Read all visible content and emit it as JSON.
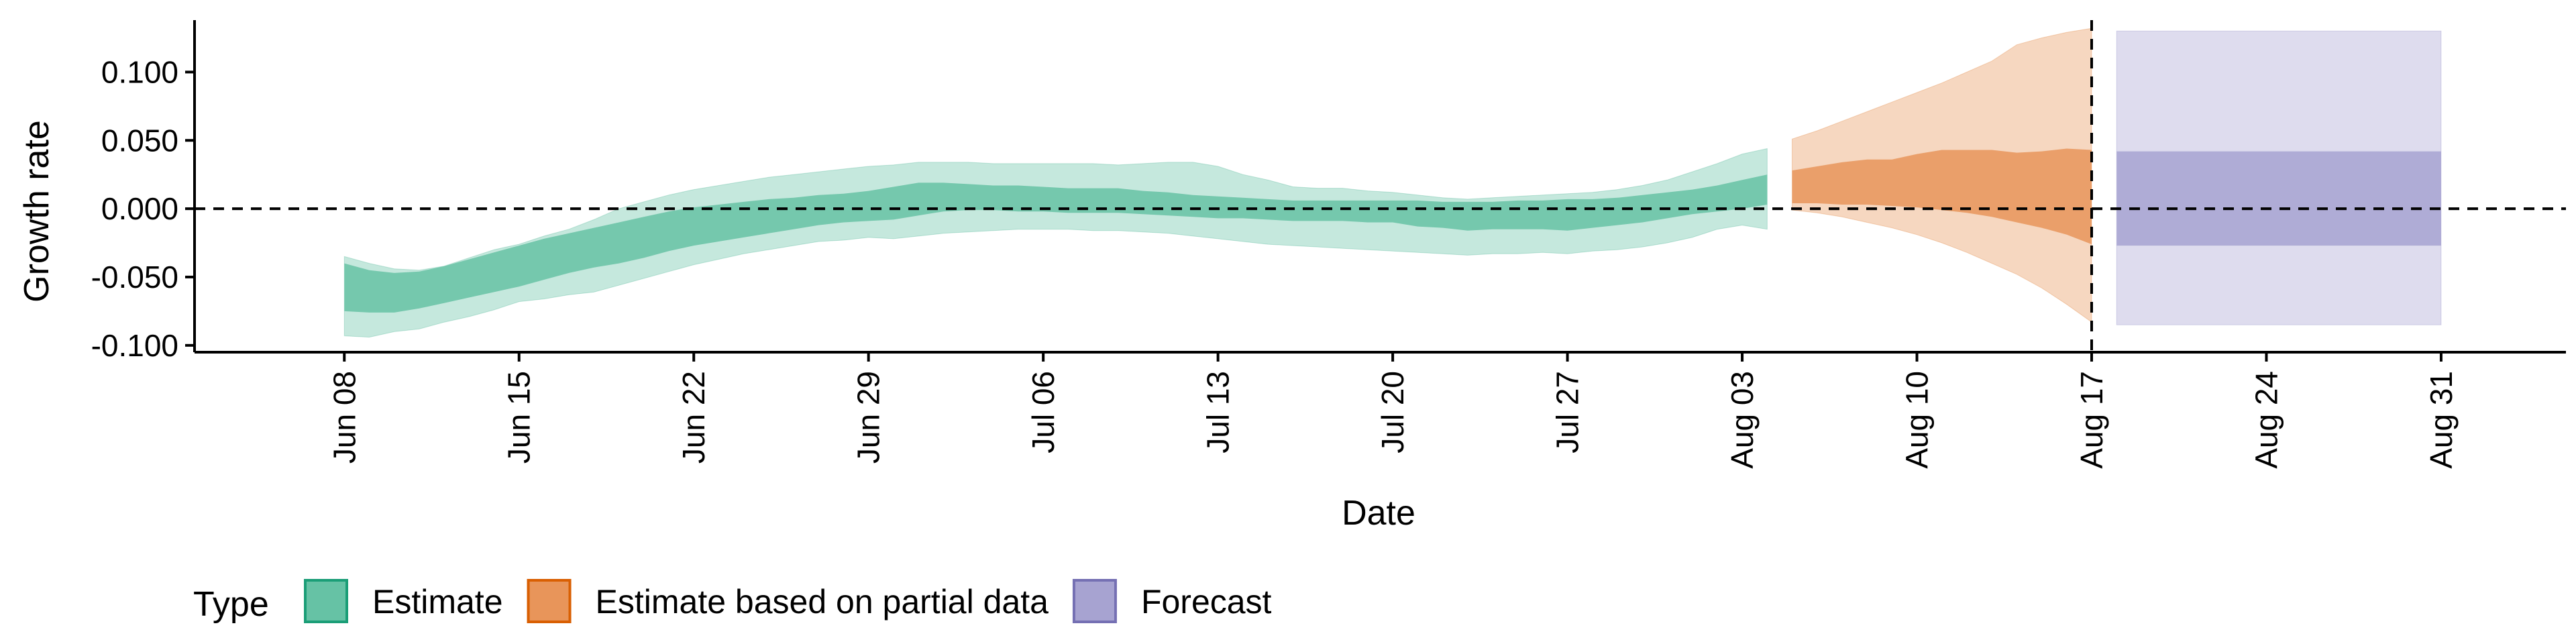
{
  "chart_data": {
    "type": "area",
    "title": "",
    "xlabel": "Date",
    "ylabel": "Growth rate",
    "ylim": [
      -0.105,
      0.138
    ],
    "xlim": [
      "2020-06-02",
      "2020-09-05"
    ],
    "y_ticks": [
      -0.1,
      -0.05,
      0.0,
      0.05,
      0.1
    ],
    "y_tick_labels": [
      "-0.100",
      "-0.050",
      "0.000",
      "0.050",
      "0.100"
    ],
    "x_ticks": [
      "2020-06-08",
      "2020-06-15",
      "2020-06-22",
      "2020-06-29",
      "2020-07-06",
      "2020-07-13",
      "2020-07-20",
      "2020-07-27",
      "2020-08-03",
      "2020-08-10",
      "2020-08-17",
      "2020-08-24",
      "2020-08-31"
    ],
    "x_tick_labels": [
      "Jun 08",
      "Jun 15",
      "Jun 22",
      "Jun 29",
      "Jul 06",
      "Jul 13",
      "Jul 20",
      "Jul 27",
      "Aug 03",
      "Aug 10",
      "Aug 17",
      "Aug 24",
      "Aug 31"
    ],
    "reference_lines": {
      "horizontal_y": 0.0,
      "vertical_date": "2020-08-17",
      "style": "dashed"
    },
    "grid": false,
    "legend": {
      "title": "Type",
      "position": "bottom-left",
      "items": [
        {
          "label": "Estimate",
          "fill": "#66c2a5",
          "border": "#1b9e77"
        },
        {
          "label": "Estimate based on partial data",
          "fill": "#e8955a",
          "border": "#d95f02"
        },
        {
          "label": "Forecast",
          "fill": "#a7a3d1",
          "border": "#7570b3"
        }
      ]
    },
    "series": [
      {
        "name": "Estimate",
        "color": "#1b9e77",
        "x": [
          "2020-06-08",
          "2020-06-09",
          "2020-06-10",
          "2020-06-11",
          "2020-06-12",
          "2020-06-13",
          "2020-06-14",
          "2020-06-15",
          "2020-06-16",
          "2020-06-17",
          "2020-06-18",
          "2020-06-19",
          "2020-06-20",
          "2020-06-21",
          "2020-06-22",
          "2020-06-23",
          "2020-06-24",
          "2020-06-25",
          "2020-06-26",
          "2020-06-27",
          "2020-06-28",
          "2020-06-29",
          "2020-06-30",
          "2020-07-01",
          "2020-07-02",
          "2020-07-03",
          "2020-07-04",
          "2020-07-05",
          "2020-07-06",
          "2020-07-07",
          "2020-07-08",
          "2020-07-09",
          "2020-07-10",
          "2020-07-11",
          "2020-07-12",
          "2020-07-13",
          "2020-07-14",
          "2020-07-15",
          "2020-07-16",
          "2020-07-17",
          "2020-07-18",
          "2020-07-19",
          "2020-07-20",
          "2020-07-21",
          "2020-07-22",
          "2020-07-23",
          "2020-07-24",
          "2020-07-25",
          "2020-07-26",
          "2020-07-27",
          "2020-07-28",
          "2020-07-29",
          "2020-07-30",
          "2020-07-31",
          "2020-08-01",
          "2020-08-02",
          "2020-08-03",
          "2020-08-04"
        ],
        "lower_90": [
          -0.093,
          -0.094,
          -0.09,
          -0.088,
          -0.083,
          -0.079,
          -0.074,
          -0.068,
          -0.066,
          -0.063,
          -0.061,
          -0.056,
          -0.051,
          -0.046,
          -0.041,
          -0.037,
          -0.033,
          -0.03,
          -0.027,
          -0.024,
          -0.023,
          -0.021,
          -0.022,
          -0.02,
          -0.018,
          -0.017,
          -0.016,
          -0.015,
          -0.015,
          -0.015,
          -0.016,
          -0.016,
          -0.017,
          -0.018,
          -0.02,
          -0.022,
          -0.024,
          -0.026,
          -0.027,
          -0.028,
          -0.029,
          -0.03,
          -0.031,
          -0.032,
          -0.033,
          -0.034,
          -0.033,
          -0.033,
          -0.032,
          -0.033,
          -0.031,
          -0.03,
          -0.028,
          -0.025,
          -0.021,
          -0.015,
          -0.012,
          -0.015
        ],
        "upper_90": [
          -0.035,
          -0.04,
          -0.044,
          -0.045,
          -0.042,
          -0.036,
          -0.03,
          -0.026,
          -0.02,
          -0.015,
          -0.008,
          0.0,
          0.005,
          0.01,
          0.014,
          0.017,
          0.02,
          0.023,
          0.025,
          0.027,
          0.029,
          0.031,
          0.032,
          0.034,
          0.034,
          0.034,
          0.033,
          0.033,
          0.033,
          0.033,
          0.033,
          0.032,
          0.033,
          0.034,
          0.034,
          0.031,
          0.025,
          0.021,
          0.016,
          0.015,
          0.015,
          0.013,
          0.012,
          0.01,
          0.008,
          0.007,
          0.008,
          0.009,
          0.01,
          0.011,
          0.012,
          0.014,
          0.017,
          0.021,
          0.027,
          0.033,
          0.04,
          0.044
        ],
        "lower_50": [
          -0.075,
          -0.076,
          -0.076,
          -0.073,
          -0.069,
          -0.065,
          -0.061,
          -0.057,
          -0.052,
          -0.047,
          -0.043,
          -0.04,
          -0.036,
          -0.031,
          -0.027,
          -0.024,
          -0.021,
          -0.018,
          -0.015,
          -0.012,
          -0.01,
          -0.009,
          -0.008,
          -0.005,
          -0.002,
          -0.001,
          -0.001,
          -0.002,
          -0.002,
          -0.003,
          -0.003,
          -0.003,
          -0.004,
          -0.005,
          -0.006,
          -0.007,
          -0.007,
          -0.008,
          -0.009,
          -0.009,
          -0.009,
          -0.01,
          -0.01,
          -0.013,
          -0.014,
          -0.016,
          -0.015,
          -0.015,
          -0.015,
          -0.016,
          -0.014,
          -0.012,
          -0.01,
          -0.007,
          -0.004,
          -0.002,
          0.0,
          0.003
        ],
        "upper_50": [
          -0.04,
          -0.045,
          -0.047,
          -0.046,
          -0.042,
          -0.037,
          -0.032,
          -0.027,
          -0.022,
          -0.018,
          -0.014,
          -0.01,
          -0.006,
          -0.002,
          0.001,
          0.003,
          0.005,
          0.007,
          0.008,
          0.01,
          0.011,
          0.013,
          0.016,
          0.019,
          0.019,
          0.018,
          0.017,
          0.017,
          0.016,
          0.015,
          0.015,
          0.015,
          0.013,
          0.012,
          0.01,
          0.009,
          0.008,
          0.007,
          0.006,
          0.006,
          0.006,
          0.006,
          0.006,
          0.006,
          0.005,
          0.005,
          0.005,
          0.006,
          0.006,
          0.007,
          0.007,
          0.008,
          0.01,
          0.012,
          0.014,
          0.017,
          0.021,
          0.025
        ]
      },
      {
        "name": "Estimate based on partial data",
        "color": "#d95f02",
        "x": [
          "2020-08-05",
          "2020-08-06",
          "2020-08-07",
          "2020-08-08",
          "2020-08-09",
          "2020-08-10",
          "2020-08-11",
          "2020-08-12",
          "2020-08-13",
          "2020-08-14",
          "2020-08-15",
          "2020-08-16",
          "2020-08-17"
        ],
        "lower_90": [
          -0.001,
          -0.003,
          -0.006,
          -0.01,
          -0.014,
          -0.019,
          -0.025,
          -0.032,
          -0.04,
          -0.048,
          -0.058,
          -0.07,
          -0.083
        ],
        "upper_90": [
          0.051,
          0.057,
          0.064,
          0.071,
          0.078,
          0.085,
          0.092,
          0.1,
          0.108,
          0.12,
          0.125,
          0.129,
          0.132
        ],
        "lower_50": [
          0.004,
          0.004,
          0.003,
          0.003,
          0.002,
          0.001,
          -0.001,
          -0.003,
          -0.006,
          -0.01,
          -0.014,
          -0.019,
          -0.026
        ],
        "upper_50": [
          0.028,
          0.031,
          0.034,
          0.036,
          0.036,
          0.04,
          0.043,
          0.043,
          0.043,
          0.041,
          0.042,
          0.044,
          0.043
        ]
      },
      {
        "name": "Forecast",
        "color": "#7570b3",
        "x": [
          "2020-08-18",
          "2020-08-31"
        ],
        "lower_90": [
          -0.085,
          -0.085
        ],
        "upper_90": [
          0.13,
          0.13
        ],
        "lower_50": [
          -0.027,
          -0.027
        ],
        "upper_50": [
          0.042,
          0.042
        ]
      }
    ]
  }
}
